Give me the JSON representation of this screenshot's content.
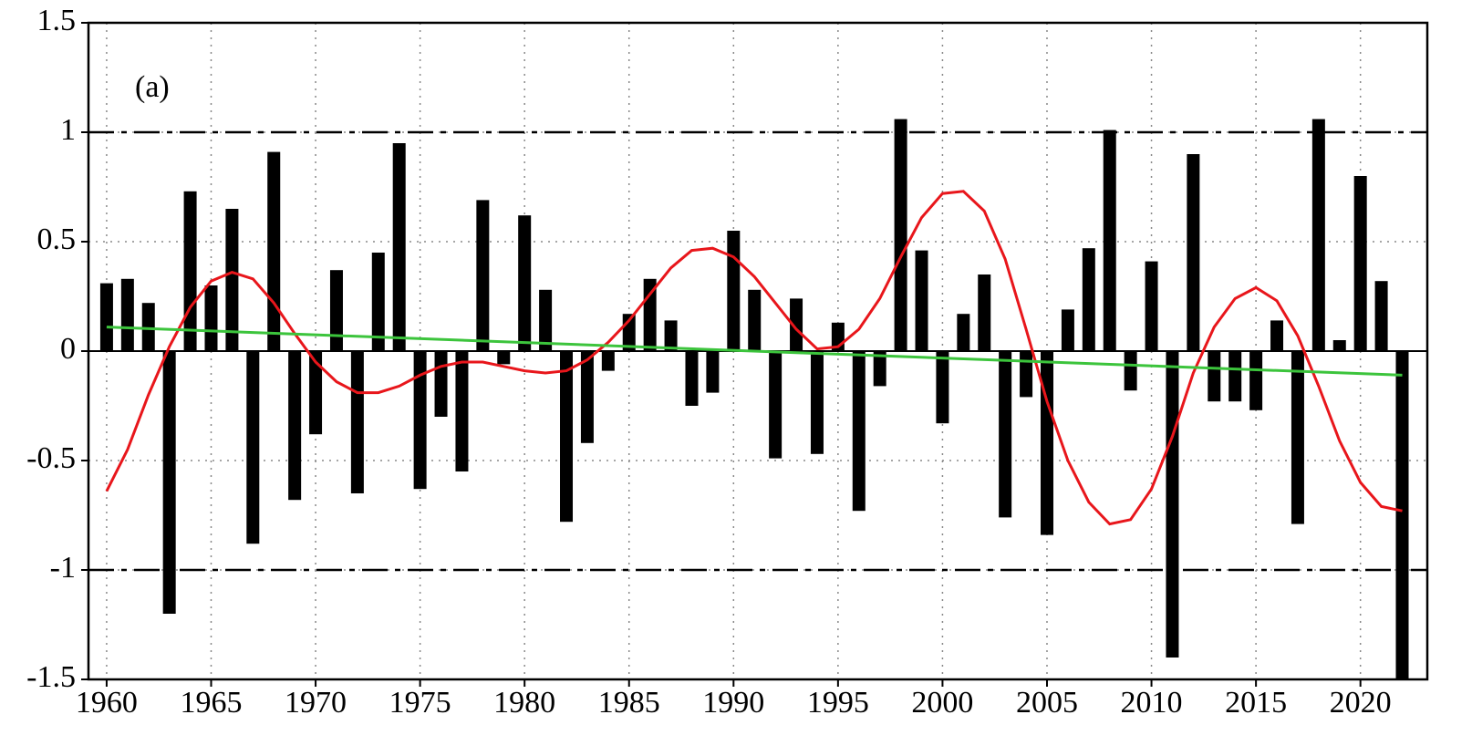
{
  "chart_data": {
    "type": "bar",
    "annotation": "(a)",
    "x": [
      1960,
      1961,
      1962,
      1963,
      1964,
      1965,
      1966,
      1967,
      1968,
      1969,
      1970,
      1971,
      1972,
      1973,
      1974,
      1975,
      1976,
      1977,
      1978,
      1979,
      1980,
      1981,
      1982,
      1983,
      1984,
      1985,
      1986,
      1987,
      1988,
      1989,
      1990,
      1991,
      1992,
      1993,
      1994,
      1995,
      1996,
      1997,
      1998,
      1999,
      2000,
      2001,
      2002,
      2003,
      2004,
      2005,
      2006,
      2007,
      2008,
      2009,
      2010,
      2011,
      2012,
      2013,
      2014,
      2015,
      2016,
      2017,
      2018,
      2019,
      2020,
      2021,
      2022
    ],
    "values": [
      0.31,
      0.33,
      0.22,
      -1.2,
      0.73,
      0.3,
      0.65,
      -0.88,
      0.91,
      -0.68,
      -0.38,
      0.37,
      -0.65,
      0.45,
      0.95,
      -0.63,
      -0.3,
      -0.55,
      0.69,
      -0.06,
      0.62,
      0.28,
      -0.78,
      -0.42,
      -0.09,
      0.17,
      0.33,
      0.14,
      -0.25,
      -0.19,
      0.55,
      0.28,
      -0.49,
      0.24,
      -0.47,
      0.13,
      -0.73,
      -0.16,
      1.06,
      0.46,
      -0.33,
      0.17,
      0.35,
      -0.76,
      -0.21,
      -0.84,
      0.19,
      0.47,
      1.01,
      -0.18,
      0.41,
      -1.4,
      0.9,
      -0.23,
      -0.23,
      -0.27,
      0.14,
      -0.79,
      1.06,
      0.05,
      0.8,
      0.32,
      -1.5
    ],
    "color": "#000000",
    "smooth": {
      "color": "#e8161b",
      "values": [
        -0.64,
        -0.45,
        -0.2,
        0.02,
        0.2,
        0.32,
        0.36,
        0.33,
        0.22,
        0.08,
        -0.05,
        -0.14,
        -0.19,
        -0.19,
        -0.16,
        -0.11,
        -0.07,
        -0.05,
        -0.05,
        -0.07,
        -0.09,
        -0.1,
        -0.09,
        -0.04,
        0.04,
        0.14,
        0.26,
        0.38,
        0.46,
        0.47,
        0.43,
        0.34,
        0.22,
        0.1,
        0.01,
        0.02,
        0.1,
        0.24,
        0.43,
        0.61,
        0.72,
        0.73,
        0.64,
        0.42,
        0.1,
        -0.23,
        -0.5,
        -0.69,
        -0.79,
        -0.77,
        -0.63,
        -0.39,
        -0.1,
        0.11,
        0.24,
        0.29,
        0.23,
        0.07,
        -0.16,
        -0.41,
        -0.6,
        -0.71,
        -0.73
      ]
    },
    "trend": {
      "color": "#3cc43c",
      "x": [
        1960,
        2022
      ],
      "values": [
        0.11,
        -0.11
      ]
    },
    "hlines": [
      1,
      -1
    ],
    "xlim": [
      1959.13,
      2023.2
    ],
    "ylim": [
      -1.5,
      1.5
    ],
    "xticks": [
      1960,
      1965,
      1970,
      1975,
      1980,
      1985,
      1990,
      1995,
      2000,
      2005,
      2010,
      2015,
      2020
    ],
    "yticks": [
      -1.5,
      -1,
      -0.5,
      0,
      0.5,
      1,
      1.5
    ],
    "grid": true
  }
}
